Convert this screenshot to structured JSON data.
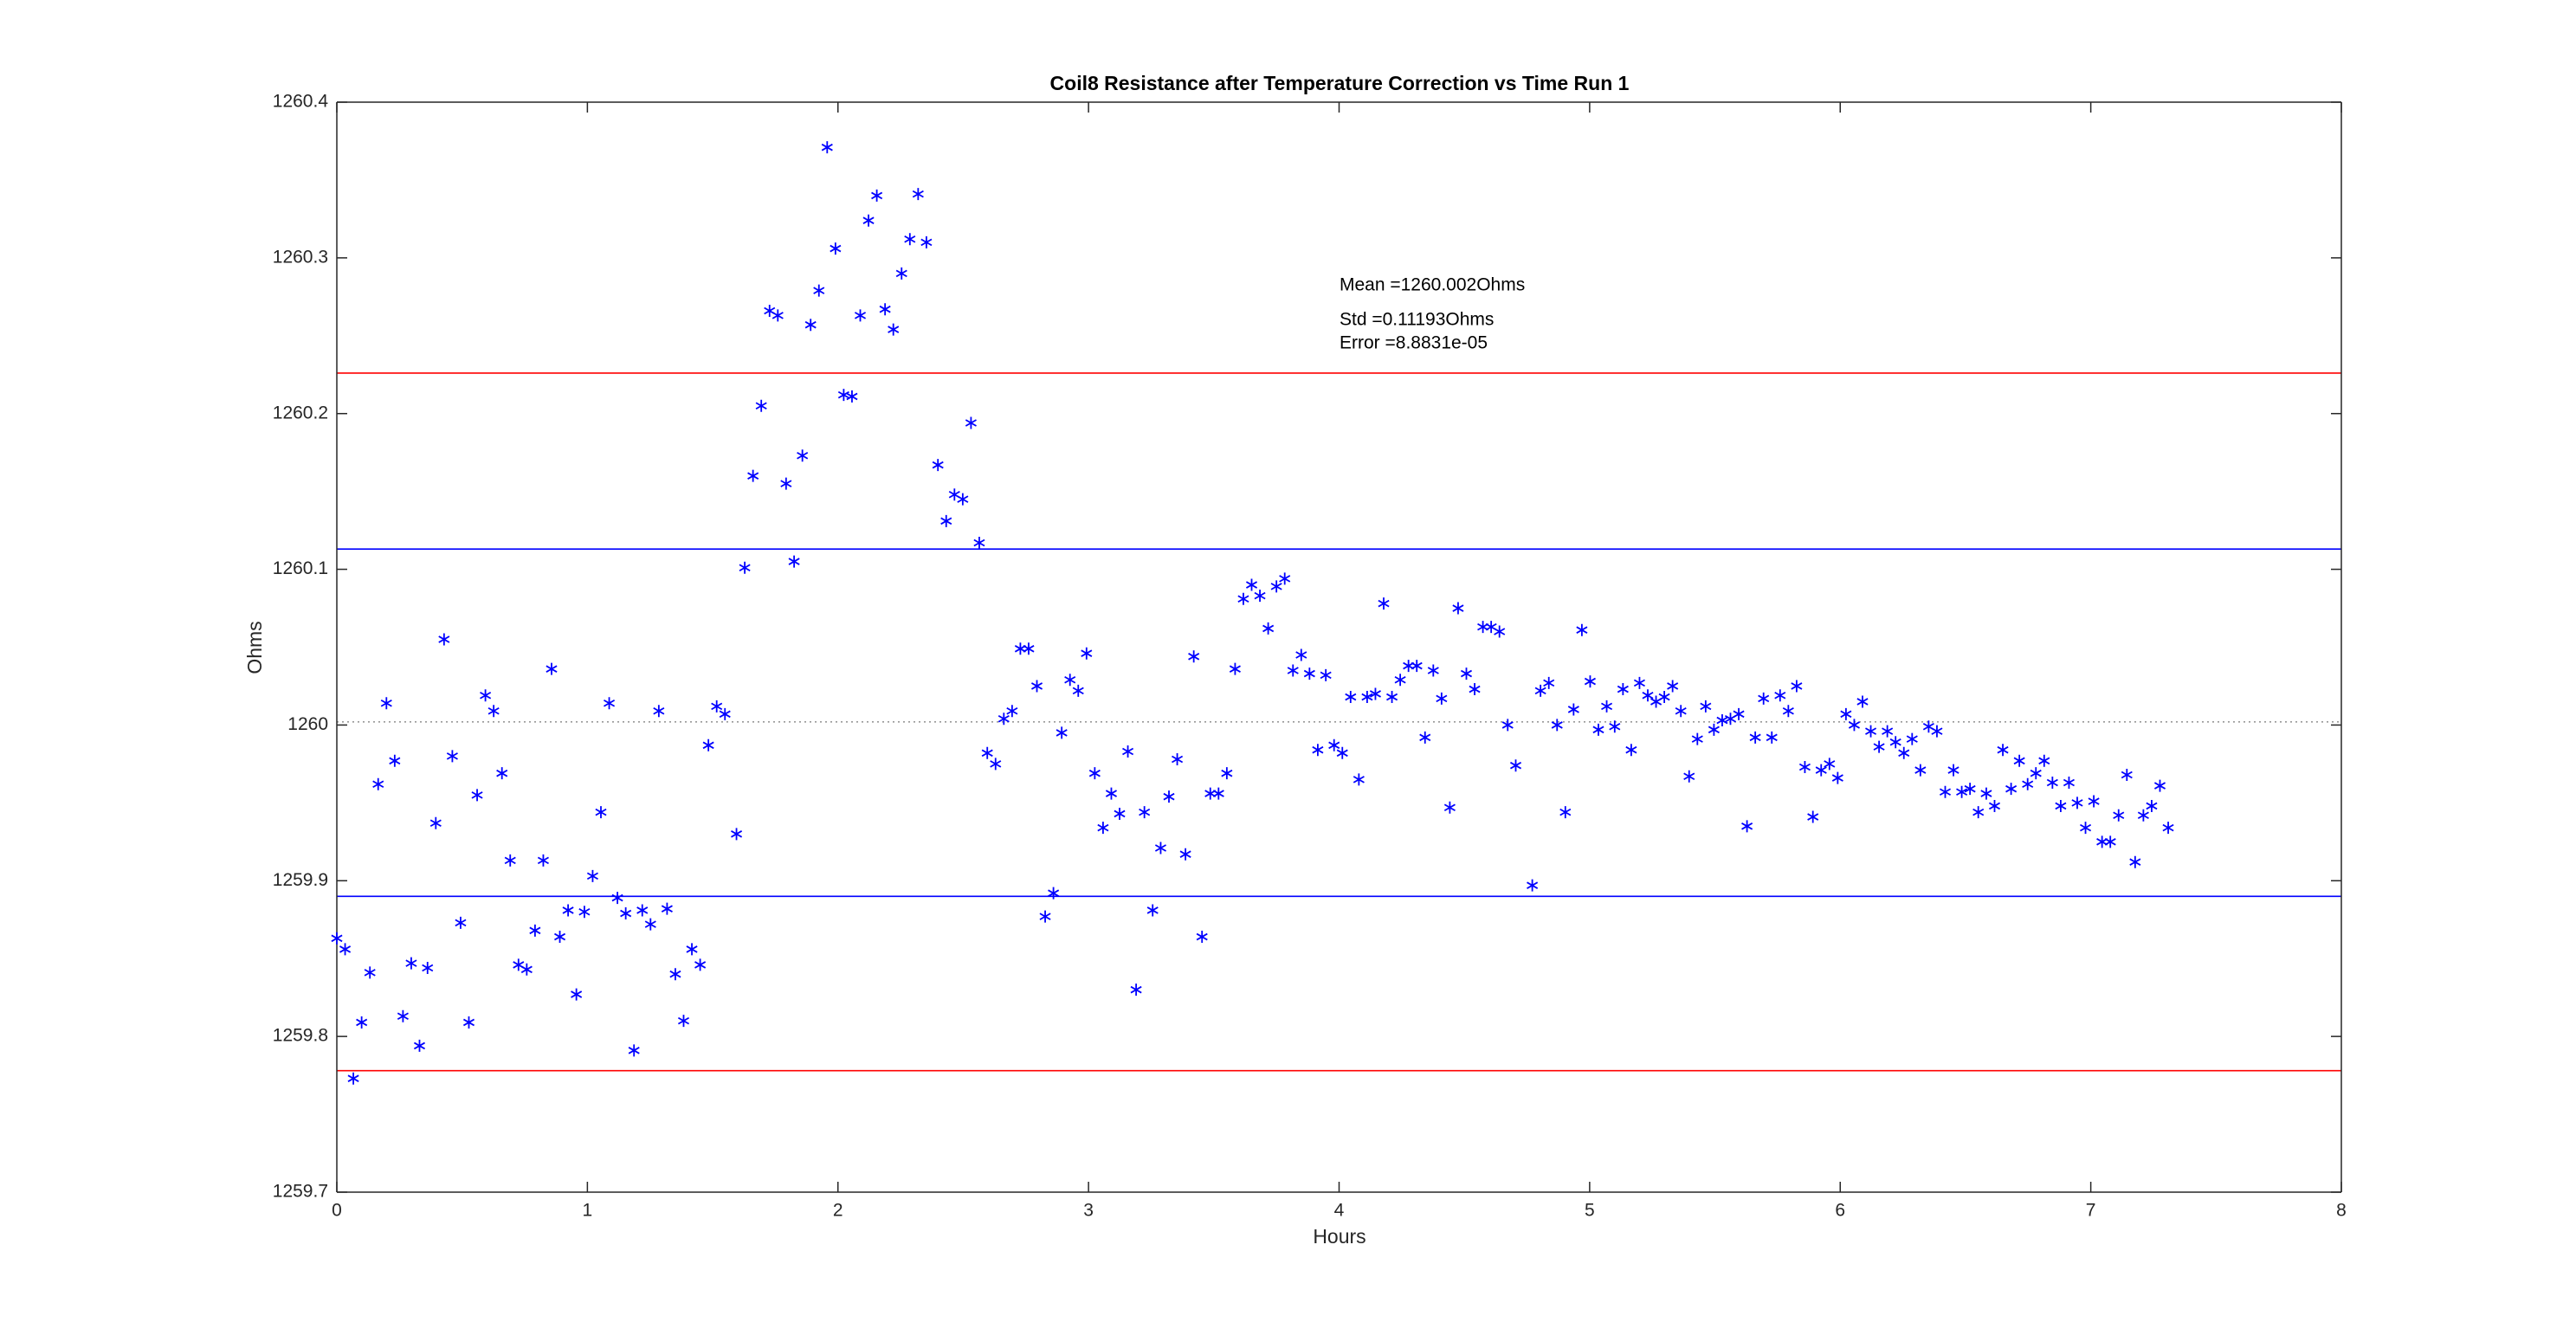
{
  "chart_data": {
    "type": "scatter",
    "title": "Coil8 Resistance after Temperature Correction vs Time Run 1",
    "xlabel": "Hours",
    "ylabel": "Ohms",
    "annotations": [
      "Mean =1260.002Ohms",
      "Std =0.11193Ohms",
      "Error =8.8831e-05"
    ],
    "color": "#0000ff",
    "marker": "asterisk",
    "grid": false,
    "box": true,
    "xlim": [
      0,
      8
    ],
    "xticks": [
      0,
      1,
      2,
      3,
      4,
      5,
      6,
      7,
      8
    ],
    "ylim": [
      1259.7,
      1260.4
    ],
    "yticks": [
      1259.7,
      1259.8,
      1259.9,
      1260,
      1260.1,
      1260.2,
      1260.3,
      1260.4
    ],
    "hlines": [
      {
        "value": 1260.002,
        "color": "#999999",
        "style": "dotted"
      },
      {
        "value": 1260.113,
        "color": "#0000ff",
        "style": "solid"
      },
      {
        "value": 1259.89,
        "color": "#0000ff",
        "style": "solid"
      },
      {
        "value": 1260.226,
        "color": "#ff0000",
        "style": "solid"
      },
      {
        "value": 1259.778,
        "color": "#ff0000",
        "style": "solid"
      }
    ],
    "x": [
      0,
      0.033,
      0.066,
      0.099,
      0.132,
      0.165,
      0.198,
      0.231,
      0.264,
      0.297,
      0.33,
      0.362,
      0.395,
      0.428,
      0.461,
      0.494,
      0.527,
      0.56,
      0.593,
      0.626,
      0.659,
      0.692,
      0.725,
      0.758,
      0.791,
      0.824,
      0.857,
      0.89,
      0.923,
      0.956,
      0.988,
      1.021,
      1.054,
      1.087,
      1.12,
      1.153,
      1.186,
      1.219,
      1.252,
      1.285,
      1.318,
      1.351,
      1.384,
      1.417,
      1.45,
      1.483,
      1.516,
      1.549,
      1.595,
      1.628,
      1.661,
      1.694,
      1.727,
      1.76,
      1.793,
      1.825,
      1.858,
      1.891,
      1.924,
      1.957,
      1.99,
      2.023,
      2.056,
      2.089,
      2.122,
      2.155,
      2.188,
      2.221,
      2.254,
      2.287,
      2.32,
      2.353,
      2.399,
      2.432,
      2.465,
      2.498,
      2.531,
      2.564,
      2.596,
      2.629,
      2.662,
      2.695,
      2.728,
      2.761,
      2.794,
      2.827,
      2.86,
      2.893,
      2.926,
      2.959,
      2.992,
      3.025,
      3.058,
      3.091,
      3.124,
      3.157,
      3.19,
      3.223,
      3.256,
      3.288,
      3.321,
      3.354,
      3.387,
      3.42,
      3.453,
      3.486,
      3.519,
      3.552,
      3.585,
      3.618,
      3.651,
      3.684,
      3.717,
      3.75,
      3.783,
      3.816,
      3.849,
      3.882,
      3.915,
      3.947,
      3.98,
      4.013,
      4.046,
      4.079,
      4.112,
      4.145,
      4.178,
      4.211,
      4.244,
      4.277,
      4.31,
      4.343,
      4.376,
      4.409,
      4.442,
      4.475,
      4.508,
      4.541,
      4.574,
      4.607,
      4.64,
      4.673,
      4.705,
      4.771,
      4.804,
      4.837,
      4.87,
      4.903,
      4.936,
      4.969,
      5.002,
      5.035,
      5.068,
      5.1,
      5.133,
      5.166,
      5.199,
      5.232,
      5.265,
      5.298,
      5.331,
      5.364,
      5.397,
      5.43,
      5.463,
      5.496,
      5.529,
      5.562,
      5.595,
      5.628,
      5.661,
      5.694,
      5.727,
      5.76,
      5.793,
      5.826,
      5.859,
      5.891,
      5.924,
      5.957,
      5.99,
      6.023,
      6.056,
      6.089,
      6.122,
      6.155,
      6.188,
      6.221,
      6.254,
      6.287,
      6.32,
      6.353,
      6.386,
      6.419,
      6.452,
      6.485,
      6.518,
      6.551,
      6.583,
      6.616,
      6.649,
      6.682,
      6.715,
      6.748,
      6.781,
      6.814,
      6.847,
      6.88,
      6.913,
      6.946,
      6.979,
      7.012,
      7.045,
      7.078,
      7.111,
      7.144,
      7.177,
      7.21,
      7.243,
      7.276,
      7.309
    ],
    "values": [
      1259.863,
      1259.856,
      1259.773,
      1259.809,
      1259.841,
      1259.962,
      1260.014,
      1259.977,
      1259.813,
      1259.847,
      1259.794,
      1259.844,
      1259.937,
      1260.055,
      1259.98,
      1259.873,
      1259.809,
      1259.955,
      1260.019,
      1260.009,
      1259.969,
      1259.913,
      1259.846,
      1259.843,
      1259.868,
      1259.913,
      1260.036,
      1259.864,
      1259.881,
      1259.827,
      1259.88,
      1259.903,
      1259.944,
      1260.014,
      1259.889,
      1259.879,
      1259.791,
      1259.881,
      1259.872,
      1260.009,
      1259.882,
      1259.84,
      1259.81,
      1259.856,
      1259.846,
      1259.987,
      1260.012,
      1260.007,
      1259.93,
      1260.101,
      1260.16,
      1260.205,
      1260.266,
      1260.263,
      1260.155,
      1260.105,
      1260.173,
      1260.257,
      1260.279,
      1260.371,
      1260.306,
      1260.212,
      1260.211,
      1260.263,
      1260.324,
      1260.34,
      1260.267,
      1260.254,
      1260.29,
      1260.312,
      1260.341,
      1260.31,
      1260.167,
      1260.131,
      1260.148,
      1260.145,
      1260.194,
      1260.117,
      1259.982,
      1259.975,
      1260.004,
      1260.009,
      1260.049,
      1260.049,
      1260.025,
      1259.877,
      1259.892,
      1259.995,
      1260.029,
      1260.022,
      1260.046,
      1259.969,
      1259.934,
      1259.956,
      1259.943,
      1259.983,
      1259.83,
      1259.944,
      1259.881,
      1259.921,
      1259.954,
      1259.978,
      1259.917,
      1260.044,
      1259.864,
      1259.956,
      1259.956,
      1259.969,
      1260.036,
      1260.081,
      1260.09,
      1260.083,
      1260.062,
      1260.089,
      1260.094,
      1260.035,
      1260.045,
      1260.033,
      1259.984,
      1260.032,
      1259.987,
      1259.982,
      1260.018,
      1259.965,
      1260.018,
      1260.02,
      1260.078,
      1260.018,
      1260.029,
      1260.038,
      1260.038,
      1259.992,
      1260.035,
      1260.017,
      1259.947,
      1260.075,
      1260.033,
      1260.023,
      1260.063,
      1260.063,
      1260.06,
      1260,
      1259.974,
      1259.897,
      1260.022,
      1260.027,
      1260,
      1259.944,
      1260.01,
      1260.061,
      1260.028,
      1259.997,
      1260.012,
      1259.999,
      1260.023,
      1259.984,
      1260.027,
      1260.019,
      1260.015,
      1260.018,
      1260.025,
      1260.009,
      1259.967,
      1259.991,
      1260.012,
      1259.997,
      1260.003,
      1260.004,
      1260.007,
      1259.935,
      1259.992,
      1260.017,
      1259.992,
      1260.019,
      1260.009,
      1260.025,
      1259.973,
      1259.941,
      1259.971,
      1259.975,
      1259.966,
      1260.007,
      1260,
      1260.015,
      1259.996,
      1259.986,
      1259.996,
      1259.989,
      1259.982,
      1259.991,
      1259.971,
      1259.999,
      1259.996,
      1259.957,
      1259.971,
      1259.957,
      1259.959,
      1259.944,
      1259.956,
      1259.948,
      1259.984,
      1259.959,
      1259.977,
      1259.962,
      1259.969,
      1259.977,
      1259.963,
      1259.948,
      1259.963,
      1259.95,
      1259.934,
      1259.951,
      1259.925,
      1259.925,
      1259.942,
      1259.968,
      1259.912,
      1259.942,
      1259.948,
      1259.961,
      1259.934
    ]
  }
}
